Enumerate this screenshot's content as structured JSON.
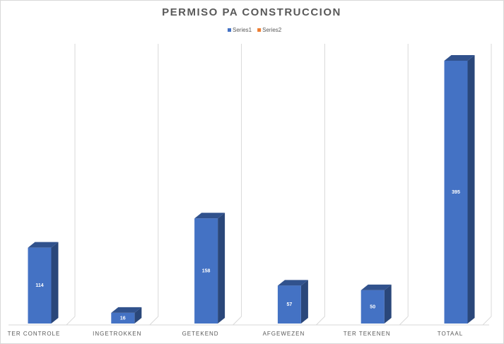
{
  "chart_data": {
    "type": "bar3d",
    "title": "PERMISO PA CONSTRUCCION",
    "categories": [
      "TER CONTROLE",
      "INGETROKKEN",
      "GETEKEND",
      "AFGEWEZEN",
      "TER TEKENEN",
      "TOTAAL"
    ],
    "series": [
      {
        "name": "Series1",
        "color": "#4472c4",
        "values": [
          114,
          16,
          158,
          57,
          50,
          395
        ]
      },
      {
        "name": "Series2",
        "color": "#ed7d31",
        "values": [
          null,
          null,
          null,
          null,
          null,
          null
        ]
      }
    ],
    "data_labels": true,
    "legend": "top"
  }
}
